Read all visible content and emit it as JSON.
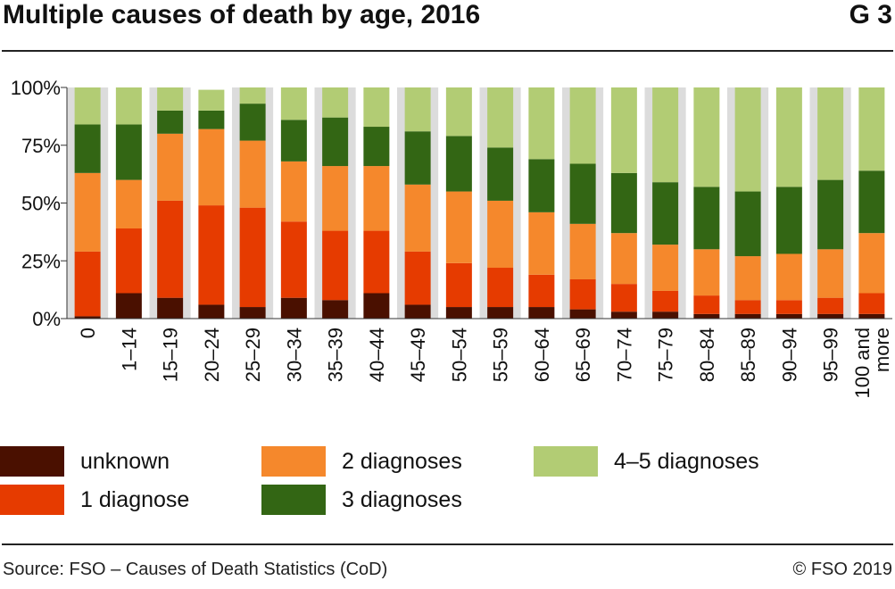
{
  "header": {
    "title": "Multiple causes of death by age, 2016",
    "figure_id": "G 3"
  },
  "footer": {
    "source": "Source: FSO – Causes of Death Statistics (CoD)",
    "credit": "© FSO 2019"
  },
  "colors": {
    "unknown": "#4a1000",
    "1 diagnose": "#e63b00",
    "2 diagnoses": "#f5882c",
    "3 diagnoses": "#336614",
    "4–5 diagnoses": "#b2cc74",
    "band": "#dcdcdc"
  },
  "chart_data": {
    "type": "bar",
    "stacked": true,
    "categories": [
      "0",
      "1–14",
      "15–19",
      "20–24",
      "25–29",
      "30–34",
      "35–39",
      "40–44",
      "45–49",
      "50–54",
      "55–59",
      "60–64",
      "65–69",
      "70–74",
      "75–79",
      "80–84",
      "85–89",
      "90–94",
      "95–99",
      "100 and more"
    ],
    "series": [
      {
        "name": "unknown",
        "values": [
          1,
          11,
          9,
          6,
          5,
          9,
          8,
          11,
          6,
          5,
          5,
          5,
          4,
          3,
          3,
          2,
          2,
          2,
          2,
          2
        ]
      },
      {
        "name": "1 diagnose",
        "values": [
          28,
          28,
          42,
          43,
          43,
          33,
          30,
          27,
          23,
          19,
          17,
          14,
          13,
          12,
          9,
          8,
          6,
          6,
          7,
          9
        ]
      },
      {
        "name": "2 diagnoses",
        "values": [
          34,
          21,
          29,
          33,
          29,
          26,
          28,
          28,
          29,
          31,
          29,
          27,
          24,
          22,
          20,
          20,
          19,
          20,
          21,
          26
        ]
      },
      {
        "name": "3 diagnoses",
        "values": [
          21,
          24,
          10,
          8,
          16,
          18,
          21,
          17,
          23,
          24,
          23,
          23,
          26,
          26,
          27,
          27,
          28,
          29,
          30,
          27
        ]
      },
      {
        "name": "4–5 diagnoses",
        "values": [
          16,
          16,
          10,
          9,
          7,
          14,
          13,
          17,
          19,
          21,
          26,
          31,
          33,
          37,
          41,
          43,
          45,
          43,
          40,
          36
        ]
      }
    ],
    "y_ticks": [
      "0%",
      "25%",
      "50%",
      "75%",
      "100%"
    ],
    "ylim": [
      0,
      100
    ],
    "grid": false,
    "legend_position": "bottom"
  }
}
